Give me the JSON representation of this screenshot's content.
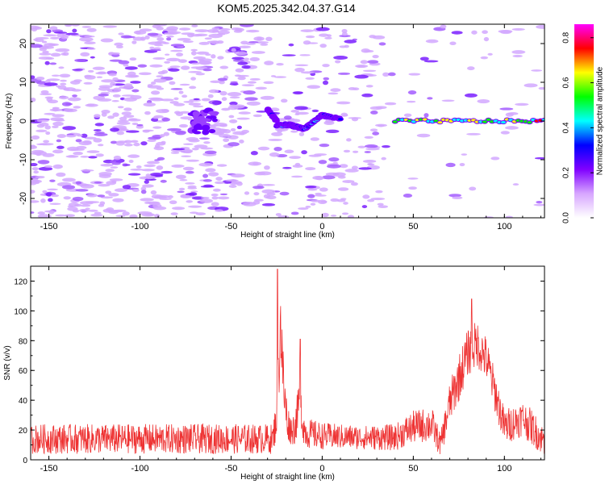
{
  "figure": {
    "title": "KOM5.2025.342.04.37.G14"
  },
  "chart_data": [
    {
      "type": "heatmap",
      "title": "KOM5.2025.342.04.37.G14",
      "xlabel": "Height of straight line (km)",
      "ylabel": "Frequency (Hz)",
      "xlim": [
        -160,
        122
      ],
      "ylim": [
        -25,
        25
      ],
      "xticks": [
        -150,
        -100,
        -50,
        0,
        50,
        100
      ],
      "yticks": [
        -20,
        -10,
        0,
        10,
        20
      ],
      "colorbar": {
        "label": "Normalized spectral amplitude",
        "range": [
          0,
          0.86
        ],
        "ticks": [
          0.0,
          0.2,
          0.4,
          0.6,
          0.8
        ],
        "colormap": [
          "#ffffff",
          "#d7a6ff",
          "#8000ff",
          "#0000ff",
          "#00ffff",
          "#00ff00",
          "#ffff00",
          "#ff0000",
          "#ff00ff"
        ]
      },
      "ridge": {
        "description_segments": [
          {
            "x": [
              -30,
              -25
            ],
            "y": [
              3,
              0
            ],
            "amplitude": 0.25
          },
          {
            "x": [
              -25,
              -18
            ],
            "y": [
              -1,
              -1
            ],
            "amplitude": 0.35
          },
          {
            "x": [
              -18,
              -10
            ],
            "y": [
              -1,
              -2
            ],
            "amplitude": 0.3
          },
          {
            "x": [
              -10,
              0
            ],
            "y": [
              -2,
              1.5
            ],
            "amplitude": 0.35
          },
          {
            "x": [
              0,
              10
            ],
            "y": [
              1.5,
              0.5
            ],
            "amplitude": 0.3
          },
          {
            "x": [
              40,
              122
            ],
            "y": [
              0,
              0
            ],
            "amplitude": 0.6
          }
        ]
      }
    },
    {
      "type": "line",
      "xlabel": "Height of straight line (km)",
      "ylabel": "SNR (v/v)",
      "xlim": [
        -160,
        122
      ],
      "ylim": [
        0,
        130
      ],
      "xticks": [
        -150,
        -100,
        -50,
        0,
        50,
        100
      ],
      "yticks": [
        0,
        20,
        40,
        60,
        80,
        100,
        120
      ],
      "color": "#ee3333",
      "envelope": {
        "x": [
          -160,
          -40,
          -27,
          -25,
          -24,
          -23,
          -21,
          -19,
          -17,
          -15,
          -13,
          -12,
          -11,
          -9,
          -5,
          0,
          20,
          40,
          50,
          60,
          65,
          70,
          75,
          80,
          85,
          90,
          95,
          100,
          105,
          110,
          115,
          122
        ],
        "mean": [
          14,
          14,
          14,
          30,
          55,
          95,
          45,
          25,
          20,
          22,
          35,
          55,
          25,
          18,
          17,
          16,
          15,
          15,
          22,
          24,
          10,
          38,
          55,
          72,
          78,
          68,
          45,
          22,
          25,
          28,
          22,
          12
        ],
        "spread": [
          10,
          10,
          10,
          15,
          25,
          30,
          20,
          12,
          10,
          12,
          15,
          20,
          12,
          10,
          10,
          9,
          8,
          9,
          11,
          12,
          8,
          14,
          16,
          16,
          16,
          15,
          14,
          12,
          12,
          12,
          12,
          10
        ],
        "peaks": [
          {
            "x": -24.5,
            "y": 128
          },
          {
            "x": -12,
            "y": 81
          },
          {
            "x": 82,
            "y": 108
          }
        ]
      }
    }
  ]
}
